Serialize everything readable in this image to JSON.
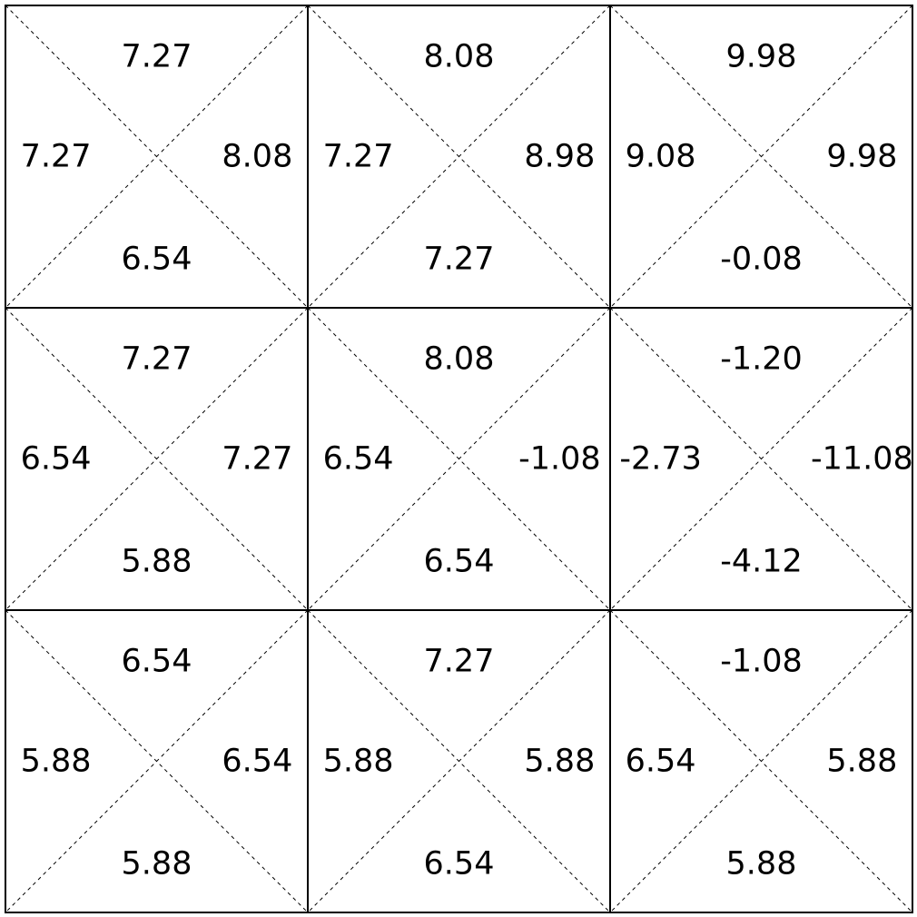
{
  "grid": {
    "rows": 3,
    "cols": 3,
    "cells": [
      {
        "top": "7.27",
        "left": "7.27",
        "right": "8.08",
        "bottom": "6.54"
      },
      {
        "top": "8.08",
        "left": "7.27",
        "right": "8.98",
        "bottom": "7.27"
      },
      {
        "top": "9.98",
        "left": "9.08",
        "right": "9.98",
        "bottom": "-0.08"
      },
      {
        "top": "7.27",
        "left": "6.54",
        "right": "7.27",
        "bottom": "5.88"
      },
      {
        "top": "8.08",
        "left": "6.54",
        "right": "-1.08",
        "bottom": "6.54"
      },
      {
        "top": "-1.20",
        "left": "-2.73",
        "right": "-11.08",
        "bottom": "-4.12"
      },
      {
        "top": "6.54",
        "left": "5.88",
        "right": "6.54",
        "bottom": "5.88"
      },
      {
        "top": "7.27",
        "left": "5.88",
        "right": "5.88",
        "bottom": "6.54"
      },
      {
        "top": "-1.08",
        "left": "6.54",
        "right": "5.88",
        "bottom": "5.88"
      }
    ]
  },
  "colors": {
    "line": "#000000",
    "background": "#ffffff",
    "text": "#000000"
  }
}
